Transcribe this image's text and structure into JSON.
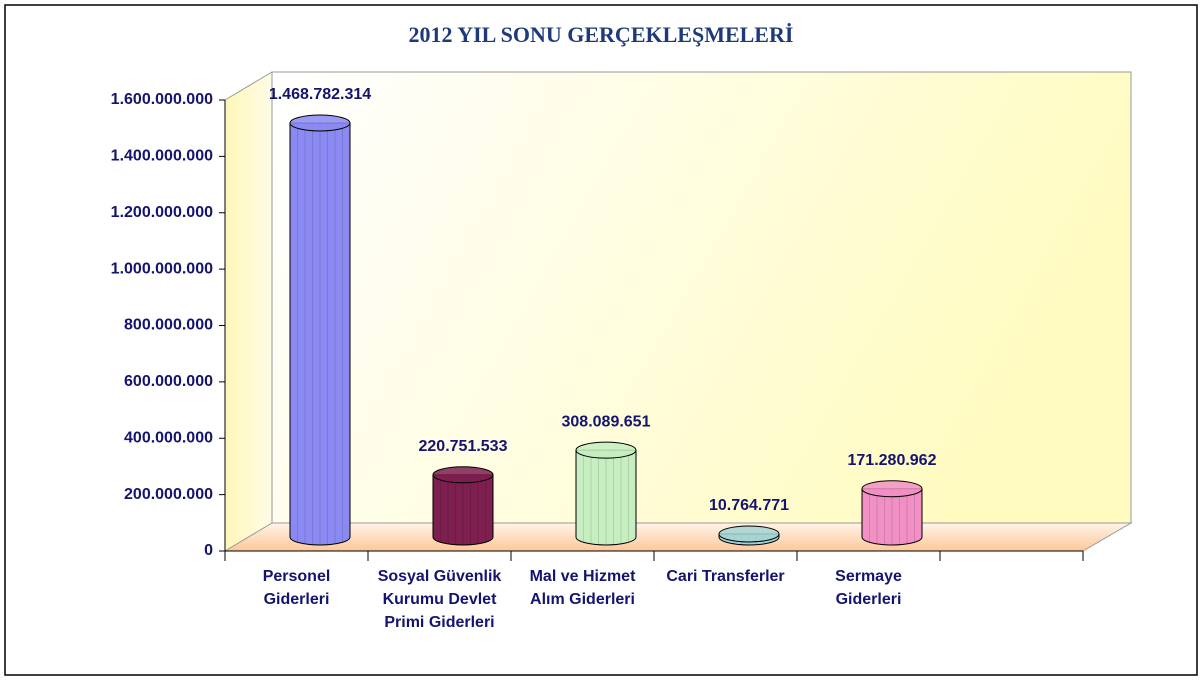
{
  "chart_data": {
    "type": "bar3d",
    "title": "2012 YIL SONU GERÇEKLEŞMELERİ",
    "categories": [
      "Personel Giderleri",
      "Sosyal Güvenlik Kurumu Devlet Primi Giderleri",
      "Mal ve Hizmet Alım Giderleri",
      "Cari Transferler",
      "Sermaye Giderleri",
      null
    ],
    "values": [
      1468782314,
      220751533,
      308089651,
      10764771,
      171280962,
      null
    ],
    "value_labels": [
      "1.468.782.314",
      "220.751.533",
      "308.089.651",
      "10.764.771",
      "171.280.962",
      null
    ],
    "colors": [
      "#8a8af2",
      "#7d1f4f",
      "#c6eec0",
      "#a4d4d4",
      "#f090c4",
      null
    ],
    "ylim": [
      0,
      1600000000
    ],
    "yticks": [
      0,
      {
        "value": 200000000,
        "label": "200.000.000"
      },
      {
        "value": 400000000,
        "label": "400.000.000"
      },
      {
        "value": 600000000,
        "label": "600.000.000"
      },
      {
        "value": 800000000,
        "label": "800.000.000"
      },
      {
        "value": 1000000000,
        "label": "1.000.000.000"
      },
      {
        "value": 1200000000,
        "label": "1.200.000.000"
      },
      {
        "value": 1400000000,
        "label": "1.400.000.000"
      },
      {
        "value": 1600000000,
        "label": "1.600.000.000"
      }
    ],
    "grid": false
  }
}
